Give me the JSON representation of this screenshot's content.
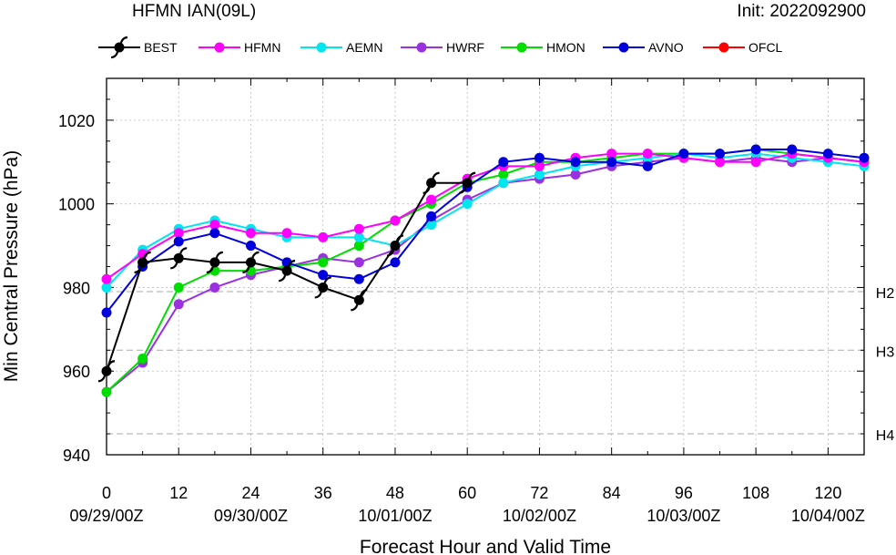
{
  "header": {
    "title": "HFMN IAN(09L)",
    "init": "Init: 2022092900"
  },
  "chart_data": {
    "type": "line",
    "xlabel": "Forecast Hour and Valid Time",
    "ylabel": "Min Central Pressure (hPa)",
    "xlim": [
      0,
      126
    ],
    "ylim": [
      940,
      1030
    ],
    "x_ticks": [
      0,
      12,
      24,
      36,
      48,
      60,
      72,
      84,
      96,
      108,
      120
    ],
    "x_tick_labels": [
      "0",
      "12",
      "24",
      "36",
      "48",
      "60",
      "72",
      "84",
      "96",
      "108",
      "120"
    ],
    "valid_time_labels": [
      {
        "x": 0,
        "label": "09/29/00Z"
      },
      {
        "x": 24,
        "label": "09/30/00Z"
      },
      {
        "x": 48,
        "label": "10/01/00Z"
      },
      {
        "x": 72,
        "label": "10/02/00Z"
      },
      {
        "x": 96,
        "label": "10/03/00Z"
      },
      {
        "x": 120,
        "label": "10/04/00Z"
      }
    ],
    "y_ticks": [
      940,
      960,
      980,
      1000,
      1020
    ],
    "reference_lines": [
      {
        "y": 979,
        "label": "H2"
      },
      {
        "y": 965,
        "label": "H3"
      },
      {
        "y": 945,
        "label": "H4"
      }
    ],
    "legend_position": "top",
    "series": [
      {
        "name": "BEST",
        "color": "#000000",
        "symbol": "hurricane",
        "x": [
          0,
          6,
          12,
          18,
          24,
          30,
          36,
          42,
          48,
          54,
          60
        ],
        "y": [
          960,
          986,
          987,
          986,
          986,
          984,
          980,
          977,
          990,
          1005,
          1005
        ]
      },
      {
        "name": "HFMN",
        "color": "#ff00ff",
        "symbol": "dot",
        "x": [
          0,
          6,
          12,
          18,
          24,
          30,
          36,
          42,
          48,
          54,
          60,
          66,
          72,
          78,
          84,
          90,
          96,
          102,
          108,
          114,
          120,
          126
        ],
        "y": [
          982,
          988,
          993,
          995,
          993,
          993,
          992,
          994,
          996,
          1001,
          1006,
          1009,
          1009,
          1011,
          1012,
          1012,
          1011,
          1010,
          1010,
          1012,
          1011,
          1010
        ]
      },
      {
        "name": "AEMN",
        "color": "#00e5ee",
        "symbol": "dot",
        "x": [
          0,
          6,
          12,
          18,
          24,
          30,
          36,
          42,
          48,
          54,
          60,
          66,
          72,
          78,
          84,
          90,
          96,
          102,
          108,
          114,
          120,
          126
        ],
        "y": [
          980,
          989,
          994,
          996,
          994,
          992,
          992,
          992,
          990,
          995,
          1000,
          1005,
          1007,
          1009,
          1010,
          1011,
          1012,
          1011,
          1012,
          1011,
          1010,
          1009
        ]
      },
      {
        "name": "HWRF",
        "color": "#9b30e0",
        "symbol": "dot",
        "x": [
          0,
          6,
          12,
          18,
          24,
          30,
          36,
          42,
          48,
          54,
          60,
          66,
          72,
          78,
          84,
          90,
          96,
          102,
          108,
          114,
          120,
          126
        ],
        "y": [
          955,
          962,
          976,
          980,
          983,
          985,
          987,
          986,
          989,
          996,
          1001,
          1005,
          1006,
          1007,
          1009,
          1010,
          1011,
          1010,
          1011,
          1010,
          1011,
          1010
        ]
      },
      {
        "name": "HMON",
        "color": "#00dd00",
        "symbol": "dot",
        "x": [
          0,
          6,
          12,
          18,
          24,
          30,
          36,
          42,
          48,
          54,
          60,
          66,
          72,
          78,
          84,
          90,
          96,
          102,
          108,
          114,
          120,
          126
        ],
        "y": [
          955,
          963,
          980,
          984,
          984,
          985,
          986,
          990,
          996,
          1000,
          1005,
          1007,
          1010,
          1010,
          1011,
          1012,
          1012,
          1012,
          1013,
          1012,
          1011,
          1010
        ]
      },
      {
        "name": "AVNO",
        "color": "#0000dd",
        "symbol": "dot",
        "x": [
          0,
          6,
          12,
          18,
          24,
          30,
          36,
          42,
          48,
          54,
          60,
          66,
          72,
          78,
          84,
          90,
          96,
          102,
          108,
          114,
          120,
          126
        ],
        "y": [
          974,
          985,
          991,
          993,
          990,
          986,
          983,
          982,
          986,
          997,
          1004,
          1010,
          1011,
          1010,
          1010,
          1009,
          1012,
          1012,
          1013,
          1013,
          1012,
          1011
        ]
      },
      {
        "name": "OFCL",
        "color": "#ff0000",
        "symbol": "dot",
        "x": [],
        "y": []
      }
    ]
  }
}
